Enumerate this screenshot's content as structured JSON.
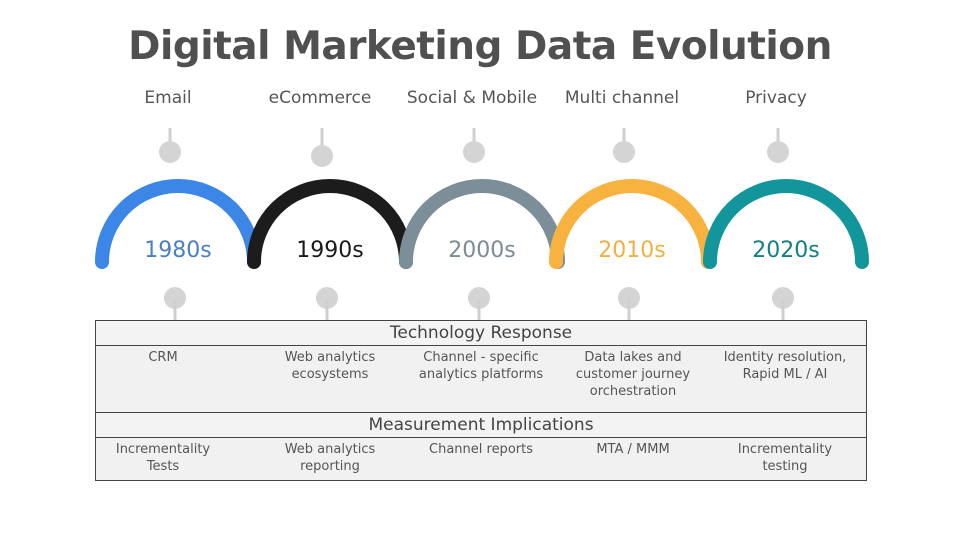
{
  "title": "Digital Marketing Data Evolution",
  "eras": [
    {
      "label": "Email",
      "decade": "1980s",
      "color": "#3b86e6"
    },
    {
      "label": "eCommerce",
      "decade": "1990s",
      "color": "#1c1c1c"
    },
    {
      "label": "Social & Mobile",
      "decade": "2000s",
      "color": "#7c8e97"
    },
    {
      "label": "Multi channel",
      "decade": "2010s",
      "color": "#f7b240"
    },
    {
      "label": "Privacy",
      "decade": "2020s",
      "color": "#13969b"
    }
  ],
  "technology": {
    "header": "Technology Response",
    "items": [
      [
        "CRM"
      ],
      [
        "Web analytics",
        "ecosystems"
      ],
      [
        "Channel - specific",
        "analytics platforms"
      ],
      [
        "Data lakes and",
        "customer journey",
        "orchestration"
      ],
      [
        "Identity resolution,",
        "Rapid ML / AI"
      ]
    ]
  },
  "measurement": {
    "header": "Measurement Implications",
    "items": [
      [
        "Incrementality",
        "Tests"
      ],
      [
        "Web analytics",
        "reporting"
      ],
      [
        "Channel reports"
      ],
      [
        "MTA / MMM"
      ],
      [
        "Incrementality",
        "testing"
      ]
    ]
  },
  "decade_text_colors": [
    "#4a7fc1",
    "#1a1a1a",
    "#7c8b94",
    "#f0b040",
    "#127f84"
  ]
}
